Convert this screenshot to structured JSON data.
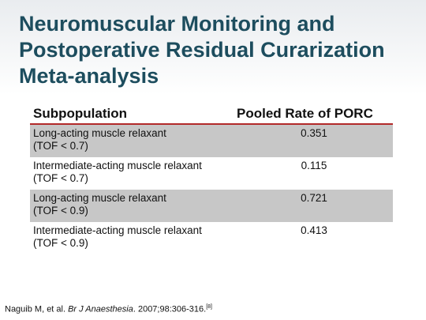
{
  "title": [
    "Neuromuscular Monitoring and",
    "Postoperative Residual Curarization",
    "Meta-analysis"
  ],
  "table": {
    "header": [
      "Subpopulation",
      "Pooled Rate of PORC"
    ],
    "rows": [
      {
        "name": "Long-acting muscle relaxant",
        "criterion": "(TOF < 0.7)",
        "rate": 0.351
      },
      {
        "name": "Intermediate-acting muscle relaxant",
        "criterion": "(TOF < 0.7)",
        "rate": 0.115
      },
      {
        "name": "Long-acting muscle relaxant",
        "criterion": "(TOF < 0.9)",
        "rate": 0.721
      },
      {
        "name": "Intermediate-acting muscle relaxant",
        "criterion": "(TOF < 0.9)",
        "rate": 0.413
      }
    ]
  },
  "citation": {
    "authors": "Naguib M, et al. ",
    "journal": "Br J Anaesthesia",
    "details": ". 2007;98:306-316.",
    "ref": "[8]"
  }
}
